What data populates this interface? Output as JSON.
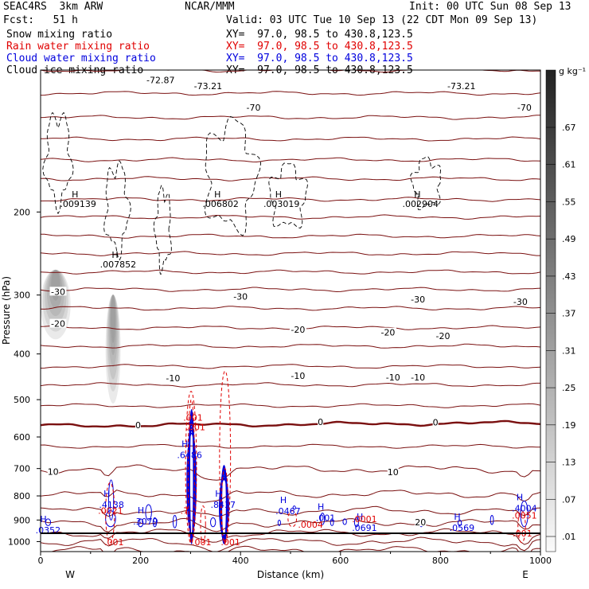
{
  "header": {
    "model": "SEAC4RS  3km ARW",
    "org": "NCAR/MMM",
    "init": "Init: 00 UTC Sun 08 Sep 13",
    "fcst": "Fcst:   51 h",
    "valid": "Valid: 03 UTC Tue 10 Sep 13 (22 CDT Mon 09 Sep 13)",
    "fields": [
      {
        "name": "Snow mixing ratio",
        "xy": "XY=  97.0, 98.5 to 430.8,123.5",
        "color": "#000000"
      },
      {
        "name": "Rain water mixing ratio",
        "xy": "XY=  97.0, 98.5 to 430.8,123.5",
        "color": "#e00000"
      },
      {
        "name": "Cloud water mixing ratio",
        "xy": "XY=  97.0, 98.5 to 430.8,123.5",
        "color": "#0000dd"
      },
      {
        "name": "Cloud ice mixing ratio",
        "xy": "XY=  97.0, 98.5 to 430.8,123.5",
        "color": "#000000"
      }
    ]
  },
  "chart_data": {
    "type": "cross-section",
    "xlabel": "Distance (km)",
    "ylabel": "Pressure (hPa)",
    "xlim": [
      0,
      1000
    ],
    "ylim": [
      1050,
      100
    ],
    "y_scale": "log",
    "x_ticks": [
      0,
      200,
      400,
      600,
      800,
      1000
    ],
    "y_ticks": [
      200,
      300,
      400,
      500,
      600,
      700,
      800,
      900,
      1000
    ],
    "end_labels": {
      "left": "W",
      "right": "E"
    },
    "colorbar": {
      "unit": "g kg⁻¹",
      "labels": [
        ".01",
        ".07",
        ".13",
        ".19",
        ".25",
        ".31",
        ".37",
        ".43",
        ".49",
        ".55",
        ".61",
        ".67"
      ]
    },
    "temperature_labels": [
      {
        "text": "-73.21",
        "x": 335,
        "p": 108
      },
      {
        "text": "-73.21",
        "x": 842,
        "p": 108
      },
      {
        "text": "-72.87",
        "x": 240,
        "p": 105
      },
      {
        "text": "-70",
        "x": 426,
        "p": 120
      },
      {
        "text": "-70",
        "x": 968,
        "p": 120
      },
      {
        "text": "-30",
        "x": 35,
        "p": 295
      },
      {
        "text": "-30",
        "x": 400,
        "p": 302
      },
      {
        "text": "-30",
        "x": 755,
        "p": 306
      },
      {
        "text": "-30",
        "x": 960,
        "p": 310
      },
      {
        "text": "-20",
        "x": 35,
        "p": 345
      },
      {
        "text": "-20",
        "x": 515,
        "p": 355
      },
      {
        "text": "-20",
        "x": 695,
        "p": 360
      },
      {
        "text": "-20",
        "x": 805,
        "p": 366
      },
      {
        "text": "-10",
        "x": 265,
        "p": 450
      },
      {
        "text": "-10",
        "x": 515,
        "p": 445
      },
      {
        "text": "-10",
        "x": 705,
        "p": 448
      },
      {
        "text": "-10",
        "x": 755,
        "p": 448
      },
      {
        "text": "0",
        "x": 195,
        "p": 566
      },
      {
        "text": "0",
        "x": 560,
        "p": 557
      },
      {
        "text": "0",
        "x": 790,
        "p": 558
      },
      {
        "text": "10",
        "x": 25,
        "p": 710
      },
      {
        "text": "10",
        "x": 705,
        "p": 712
      },
      {
        "text": "20",
        "x": 760,
        "p": 910
      }
    ],
    "isotherms_p_at_ends": [
      [
        100,
        100
      ],
      [
        112,
        112
      ],
      [
        126,
        126
      ],
      [
        140,
        140
      ],
      [
        155,
        155
      ],
      [
        170,
        170
      ],
      [
        188,
        188
      ],
      [
        205,
        205
      ],
      [
        225,
        225
      ],
      [
        245,
        245
      ],
      [
        268,
        268
      ],
      [
        292,
        292
      ],
      [
        320,
        320
      ],
      [
        352,
        352
      ],
      [
        385,
        385
      ],
      [
        425,
        425
      ],
      [
        465,
        465
      ],
      [
        515,
        515
      ],
      [
        568,
        560
      ],
      [
        628,
        628
      ],
      [
        702,
        702
      ],
      [
        792,
        792
      ],
      [
        860,
        860
      ],
      [
        912,
        912
      ],
      [
        958,
        958
      ],
      [
        1000,
        1000
      ],
      [
        1043,
        1043
      ]
    ],
    "snow_features": [
      {
        "name": "snow-plume-1",
        "x0": 0,
        "x1": 60,
        "p0": 255,
        "p1": 372
      },
      {
        "name": "snow-plume-2",
        "x0": 130,
        "x1": 160,
        "p0": 288,
        "p1": 520
      }
    ],
    "cloud_ice_maxima": [
      {
        "text": ".009139",
        "x": 75,
        "p": 192
      },
      {
        "text": ".007852",
        "x": 155,
        "p": 258
      },
      {
        "text": ".006802",
        "x": 360,
        "p": 192
      },
      {
        "text": ".003019",
        "x": 482,
        "p": 192
      },
      {
        "text": ".002904",
        "x": 760,
        "p": 192
      }
    ],
    "cloud_water_maxima": [
      {
        "text": ".4138",
        "x": 142,
        "p": 835
      },
      {
        "text": ".3079",
        "x": 210,
        "p": 905
      },
      {
        "text": ".6486",
        "x": 298,
        "p": 655
      },
      {
        "text": ".8437",
        "x": 365,
        "p": 835
      },
      {
        "text": ".0467",
        "x": 495,
        "p": 862
      },
      {
        "text": ".001",
        "x": 570,
        "p": 890
      },
      {
        "text": ".0691",
        "x": 648,
        "p": 935
      },
      {
        "text": ".0569",
        "x": 843,
        "p": 935
      },
      {
        "text": ".4004",
        "x": 968,
        "p": 850
      },
      {
        "text": ".0352",
        "x": 15,
        "p": 945
      }
    ],
    "rain_labels": [
      {
        "text": ".0021",
        "x": 140,
        "p": 860
      },
      {
        "text": ".001",
        "x": 147,
        "p": 1003
      },
      {
        "text": ".7",
        "x": 288,
        "p": 860
      },
      {
        "text": ".001",
        "x": 305,
        "p": 545
      },
      {
        "text": ".001",
        "x": 310,
        "p": 572
      },
      {
        "text": ".001",
        "x": 322,
        "p": 1003
      },
      {
        "text": ".001",
        "x": 380,
        "p": 1003
      },
      {
        "text": ".0004",
        "x": 540,
        "p": 920
      },
      {
        "text": ".0001",
        "x": 648,
        "p": 895
      },
      {
        "text": ".0051",
        "x": 968,
        "p": 880
      },
      {
        "text": ".001",
        "x": 964,
        "p": 960
      }
    ]
  }
}
